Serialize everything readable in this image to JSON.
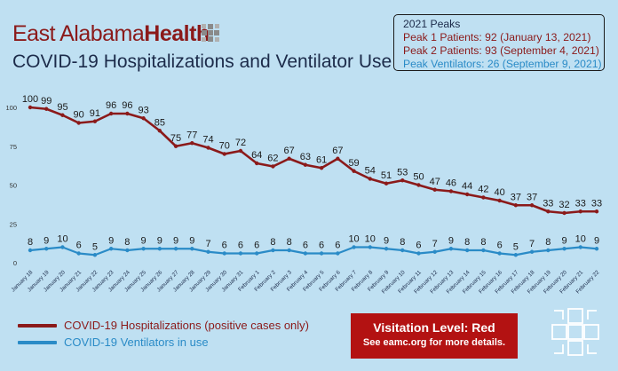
{
  "brand": {
    "name_part1": "East Alabama",
    "name_part2": "Health",
    "logo_icon": "cross-grid-icon",
    "color": "#8b1a1a"
  },
  "title": "COVID-19 Hospitalizations and Ventilator Use",
  "peaks": {
    "heading": "2021 Peaks",
    "peak1": "Peak 1 Patients: 92 (January 13, 2021)",
    "peak2": "Peak 2 Patients: 93 (September 4, 2021)",
    "ventilators": "Peak Ventilators: 26 (September 9, 2021)"
  },
  "legend": {
    "hospitalizations": "COVID-19 Hospitalizations (positive cases only)",
    "ventilators": "COVID-19 Ventilators in use"
  },
  "visitation": {
    "level": "Visitation Level: Red",
    "details": "See eamc.org for more details.",
    "color": "#b31212"
  },
  "colors": {
    "background": "#bfe0f2",
    "hospitalizations": "#8b1a1a",
    "ventilators": "#2a8bc7"
  },
  "chart_data": {
    "type": "line",
    "title": "COVID-19 Hospitalizations and Ventilator Use",
    "xlabel": "",
    "ylabel": "",
    "ylim": [
      0,
      100
    ],
    "yticks": [
      0,
      25,
      50,
      75,
      100
    ],
    "grid": false,
    "legend_position": "bottom-left",
    "categories": [
      "January 18",
      "January 19",
      "January 20",
      "January 21",
      "January 22",
      "January 23",
      "January 24",
      "January 25",
      "January 26",
      "January 27",
      "January 28",
      "January 29",
      "January 30",
      "January 31",
      "February 1",
      "February 2",
      "February 3",
      "February 4",
      "February 5",
      "February 6",
      "February 7",
      "February 8",
      "February 9",
      "February 10",
      "February 11",
      "February 12",
      "February 13",
      "February 14",
      "February 15",
      "February 16",
      "February 17",
      "February 18",
      "February 19",
      "February 20",
      "February 21",
      "February 22"
    ],
    "series": [
      {
        "name": "COVID-19 Hospitalizations (positive cases only)",
        "color": "#8b1a1a",
        "values": [
          100,
          99,
          95,
          90,
          91,
          96,
          96,
          93,
          85,
          75,
          77,
          74,
          70,
          72,
          64,
          62,
          67,
          63,
          61,
          67,
          59,
          54,
          51,
          53,
          50,
          47,
          46,
          44,
          42,
          40,
          37,
          37,
          33,
          32,
          33,
          33
        ]
      },
      {
        "name": "COVID-19 Ventilators in use",
        "color": "#2a8bc7",
        "values": [
          8,
          9,
          10,
          6,
          5,
          9,
          8,
          9,
          9,
          9,
          9,
          7,
          6,
          6,
          6,
          8,
          8,
          6,
          6,
          6,
          10,
          10,
          9,
          8,
          6,
          7,
          9,
          8,
          8,
          6,
          5,
          7,
          8,
          9,
          10,
          9
        ]
      }
    ]
  }
}
